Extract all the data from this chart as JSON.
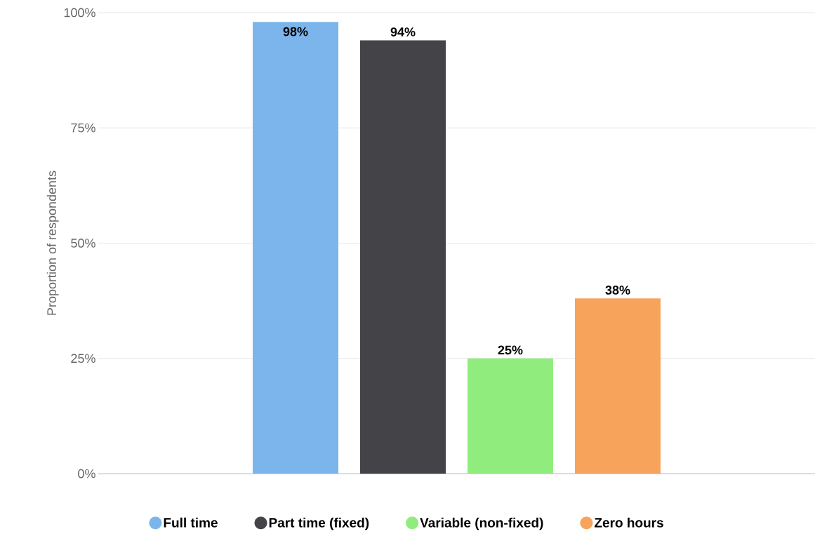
{
  "chart_data": {
    "type": "bar",
    "ylabel": "Proportion of respondents",
    "categories": [
      null
    ],
    "series": [
      {
        "name": "Full time",
        "color": "#7cb5ec",
        "values": [
          98
        ],
        "value_labels": [
          "98%"
        ]
      },
      {
        "name": "Part time (fixed)",
        "color": "#434348",
        "values": [
          94
        ],
        "value_labels": [
          "94%"
        ]
      },
      {
        "name": "Variable (non-fixed)",
        "color": "#90ed7d",
        "values": [
          25
        ],
        "value_labels": [
          "25%"
        ]
      },
      {
        "name": "Zero hours",
        "color": "#f7a35c",
        "values": [
          38
        ],
        "value_labels": [
          "38%"
        ]
      }
    ],
    "ylim": [
      0,
      100
    ],
    "yticks": [
      {
        "value": 0,
        "label": "0%"
      },
      {
        "value": 25,
        "label": "25%"
      },
      {
        "value": 50,
        "label": "50%"
      },
      {
        "value": 75,
        "label": "75%"
      },
      {
        "value": 100,
        "label": "100%"
      }
    ],
    "grid": "y",
    "legend": "bottom"
  }
}
